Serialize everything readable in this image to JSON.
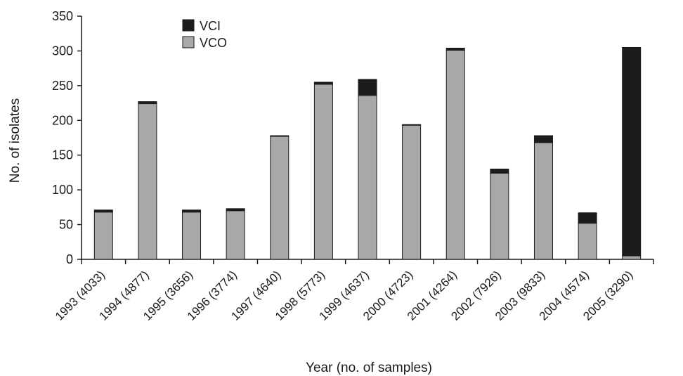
{
  "chart_data": {
    "type": "bar",
    "stacked": true,
    "title": "",
    "xlabel": "Year (no. of samples)",
    "ylabel": "No. of isolates",
    "ylim": [
      0,
      350
    ],
    "yticks": [
      0,
      50,
      100,
      150,
      200,
      250,
      300,
      350
    ],
    "categories": [
      "1993 (4033)",
      "1994 (4877)",
      "1995 (3656)",
      "1996 (3774)",
      "1997 (4640)",
      "1998 (5773)",
      "1999 (4637)",
      "2000 (4723)",
      "2001 (4264)",
      "2002 (7926)",
      "2003 (9833)",
      "2004 (4574)",
      "2005 (3290)"
    ],
    "series": [
      {
        "name": "VCO",
        "color": "#a8a8a8",
        "values": [
          68,
          224,
          68,
          70,
          177,
          252,
          236,
          193,
          301,
          124,
          168,
          52,
          5
        ]
      },
      {
        "name": "VCI",
        "color": "#1c1c1c",
        "values": [
          3,
          3,
          3,
          3,
          1,
          3,
          23,
          1,
          3,
          6,
          10,
          15,
          300
        ]
      }
    ],
    "legend_position": "top-left",
    "grid": false
  }
}
